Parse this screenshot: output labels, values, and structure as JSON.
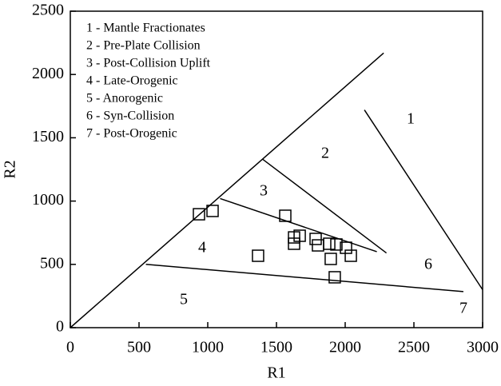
{
  "chart_data": {
    "type": "scatter",
    "xlabel": "R1",
    "ylabel": "R2",
    "xlim": [
      0,
      3000
    ],
    "ylim": [
      0,
      2500
    ],
    "xticks": [
      0,
      500,
      1000,
      1500,
      2000,
      2500,
      3000
    ],
    "yticks": [
      0,
      500,
      1000,
      1500,
      2000,
      2500
    ],
    "legend_items": [
      "1 - Mantle Fractionates",
      "2 - Pre-Plate Collision",
      "3 - Post-Collision Uplift",
      "4 - Late-Orogenic",
      "5 - Anorogenic",
      "6 - Syn-Collision",
      "7 - Post-Orogenic"
    ],
    "region_labels": [
      "1",
      "2",
      "3",
      "4",
      "5",
      "6",
      "7"
    ],
    "lines": [
      {
        "x": [
          0,
          2280
        ],
        "y": [
          0,
          2170
        ]
      },
      {
        "x": [
          2140,
          3000
        ],
        "y": [
          1720,
          300
        ]
      },
      {
        "x": [
          1400,
          2300
        ],
        "y": [
          1330,
          590
        ]
      },
      {
        "x": [
          1090,
          2230
        ],
        "y": [
          1020,
          600
        ]
      },
      {
        "x": [
          550,
          2860
        ],
        "y": [
          500,
          285
        ]
      }
    ],
    "points": {
      "x": [
        936,
        1035,
        1564,
        1366,
        1628,
        1669,
        1628,
        1785,
        1802,
        1884,
        1936,
        2006,
        2041,
        1895,
        1924
      ],
      "y": [
        896,
        922,
        884,
        568,
        713,
        726,
        663,
        701,
        650,
        663,
        657,
        631,
        568,
        543,
        398
      ]
    },
    "color": "#000000"
  }
}
